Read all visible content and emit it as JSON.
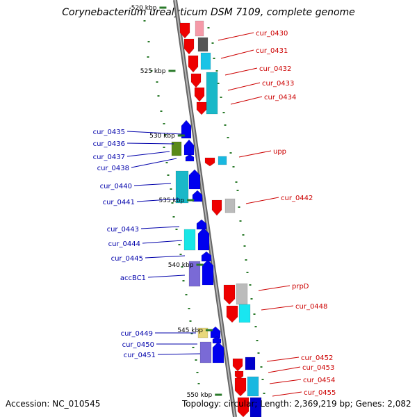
{
  "title": "Corynebacterium urealyticum DSM 7109, complete genome",
  "accession": "Accession: NC_010545",
  "summary": "Topology: circular; Length: 2,369,219 bp; Genes: 2,082",
  "ticks": [
    {
      "label": "520 kbp",
      "pos": 520
    },
    {
      "label": "525 kbp",
      "pos": 525
    },
    {
      "label": "530 kbp",
      "pos": 530
    },
    {
      "label": "535 kbp",
      "pos": 535
    },
    {
      "label": "540 kbp",
      "pos": 540
    },
    {
      "label": "545 kbp",
      "pos": 545
    },
    {
      "label": "550 kbp",
      "pos": 550
    }
  ],
  "genes_forward": [
    {
      "label": "cur_0435"
    },
    {
      "label": "cur_0436"
    },
    {
      "label": "cur_0437"
    },
    {
      "label": "cur_0438"
    },
    {
      "label": "cur_0440"
    },
    {
      "label": "cur_0441"
    },
    {
      "label": "cur_0443"
    },
    {
      "label": "cur_0444"
    },
    {
      "label": "cur_0445"
    },
    {
      "label": "accBC1"
    },
    {
      "label": "cur_0449"
    },
    {
      "label": "cur_0450"
    },
    {
      "label": "cur_0451"
    }
  ],
  "genes_reverse": [
    {
      "label": "cur_0430"
    },
    {
      "label": "cur_0431"
    },
    {
      "label": "cur_0432"
    },
    {
      "label": "cur_0433"
    },
    {
      "label": "cur_0434"
    },
    {
      "label": "upp"
    },
    {
      "label": "cur_0442"
    },
    {
      "label": "prpD"
    },
    {
      "label": "cur_0448"
    },
    {
      "label": "cur_0452"
    },
    {
      "label": "cur_0453"
    },
    {
      "label": "cur_0454"
    },
    {
      "label": "cur_0455"
    }
  ],
  "colors": {
    "forward_label": "#0000aa",
    "reverse_label": "#cc0000",
    "gene_forward": "#0000ee",
    "gene_reverse": "#ee0000",
    "tick": "#2a7a2a",
    "backbone": "#888888"
  }
}
